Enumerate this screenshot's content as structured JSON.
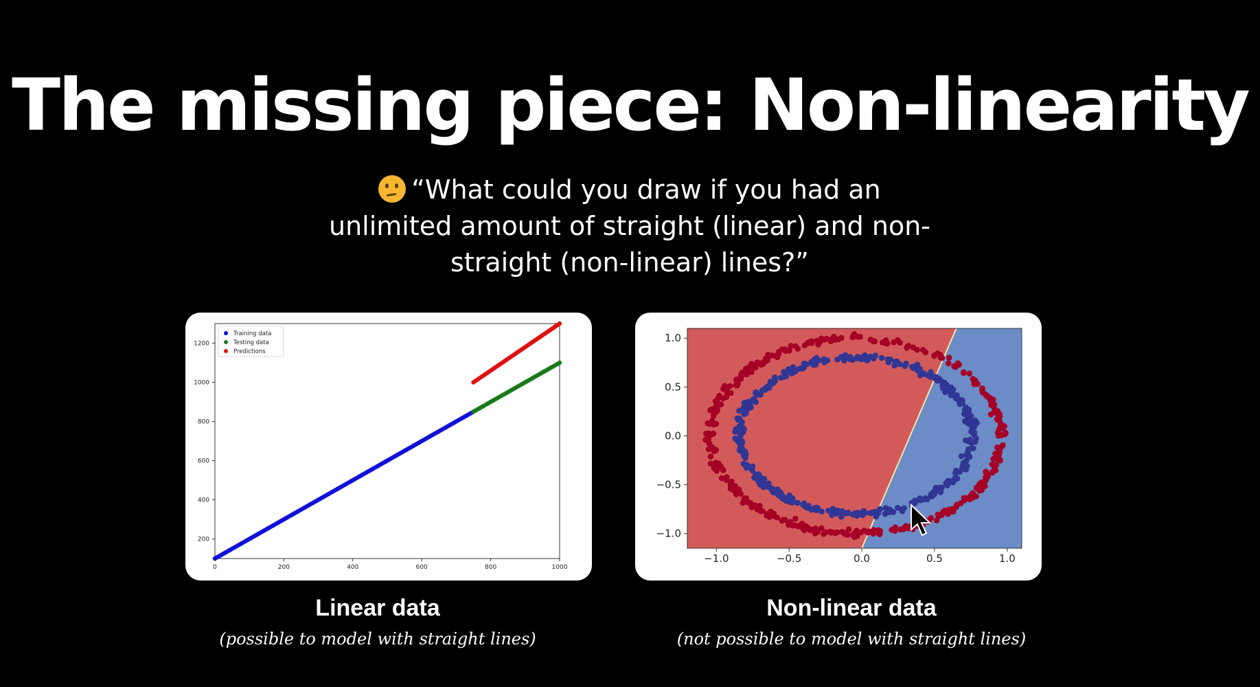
{
  "slide": {
    "title": "The missing piece: Non-linearity",
    "quote_line1": "“What could you draw if you had an",
    "quote_line2": "unlimited amount of straight (linear) and non-",
    "quote_line3": "straight (non-linear) lines?”",
    "quote_icon": "thinking-face-icon"
  },
  "left": {
    "caption": "Linear data",
    "subcaption": "(possible to model with straight lines)"
  },
  "right": {
    "caption": "Non-linear data",
    "subcaption": "(not possible to model with straight lines)"
  },
  "colors": {
    "background": "#000000",
    "training": "#1010d8",
    "testing": "#1a7a1a",
    "predictions": "#e01010",
    "class0": "#a50026",
    "class1": "#313695",
    "region_red": "#d35a5a",
    "region_blue": "#6b8cc6"
  },
  "chart_data": [
    {
      "type": "scatter",
      "xlim": [
        0,
        1000
      ],
      "ylim": [
        100,
        1300
      ],
      "xticks": [
        "0",
        "200",
        "400",
        "600",
        "800",
        "1000"
      ],
      "yticks": [
        "200",
        "400",
        "600",
        "800",
        "1000",
        "1200"
      ],
      "legend_position": "top-left",
      "series": [
        {
          "name": "Training data",
          "x_range": [
            0,
            750
          ],
          "y_range": [
            100,
            850
          ]
        },
        {
          "name": "Testing data",
          "x_range": [
            750,
            1000
          ],
          "y_range": [
            850,
            1100
          ]
        },
        {
          "name": "Predictions",
          "x_range": [
            750,
            1000
          ],
          "y_range": [
            1000,
            1300
          ]
        }
      ]
    },
    {
      "type": "scatter",
      "xlim": [
        -1.2,
        1.1
      ],
      "ylim": [
        -1.15,
        1.1
      ],
      "xticks": [
        "−1.0",
        "−0.5",
        "0.0",
        "0.5",
        "1.0"
      ],
      "yticks": [
        "1.0",
        "0.5",
        "0.0",
        "−0.5",
        "−1.0"
      ],
      "decision_boundary": {
        "x_at_bottom": 0.0,
        "x_at_top": 0.65
      },
      "series": [
        {
          "class": 0,
          "shape": "circle",
          "radius": 1.0
        },
        {
          "class": 1,
          "shape": "circle",
          "radius": 0.8
        }
      ]
    }
  ]
}
